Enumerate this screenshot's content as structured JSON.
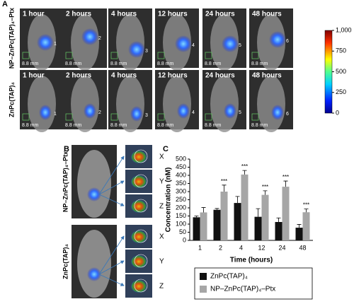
{
  "panel_a": {
    "label": "A",
    "rows": [
      {
        "label": "NP–ZnPc(TAP)₄–Ptx",
        "images": [
          {
            "time": "1 hour",
            "number": "1",
            "scale": "8.8 mm"
          },
          {
            "time": "2 hours",
            "number": "2",
            "scale": "8.8 mm"
          },
          {
            "time": "4 hours",
            "number": "3",
            "scale": "8.8 mm"
          },
          {
            "time": "12 hours",
            "number": "4",
            "scale": "8.8 mm"
          },
          {
            "time": "24 hours",
            "number": "5",
            "scale": "8.8 mm"
          },
          {
            "time": "48 hours",
            "number": "6",
            "scale": "8.8 mm"
          }
        ]
      },
      {
        "label": "ZnPc(TAP)₄",
        "images": [
          {
            "time": "1 hour",
            "number": "1",
            "scale": "8.8 mm"
          },
          {
            "time": "2 hours",
            "number": "2",
            "scale": "8.8 mm"
          },
          {
            "time": "4 hours",
            "number": "3",
            "scale": "8.8 mm"
          },
          {
            "time": "12 hours",
            "number": "4",
            "scale": "8.8 mm"
          },
          {
            "time": "24 hours",
            "number": "5",
            "scale": "8.8 mm"
          },
          {
            "time": "48 hours",
            "number": "6",
            "scale": "8.8 mm"
          }
        ]
      }
    ],
    "colorbar": {
      "lim": [
        0,
        1000
      ],
      "ticks": [
        {
          "value": 1000,
          "label": "1,000"
        },
        750,
        500,
        250,
        0
      ]
    }
  },
  "panel_b": {
    "label": "B",
    "groups": [
      {
        "label": "NP–ZnPc(TAP)₄–Ptx",
        "views": [
          "X",
          "Y",
          "Z"
        ]
      },
      {
        "label": "ZnPc(TAP)₄",
        "views": [
          "X",
          "Y",
          "Z"
        ]
      }
    ]
  },
  "panel_c_label": "C",
  "chart_data": {
    "type": "bar",
    "categories": [
      "1",
      "2",
      "4",
      "12",
      "24",
      "48"
    ],
    "x_label": "Time (hours)",
    "y_label": "Concentration (nM)",
    "ylim": [
      0,
      500
    ],
    "yticks": [
      0,
      50,
      100,
      150,
      200,
      250,
      300,
      350,
      400,
      450,
      500
    ],
    "series": [
      {
        "name": "ZnPc(TAP)₄",
        "color": "#111111",
        "values": [
          142,
          188,
          230,
          145,
          113,
          78
        ],
        "errors": [
          8,
          8,
          40,
          50,
          25,
          20
        ]
      },
      {
        "name": "NP–ZnPc(TAP)₄–Ptx",
        "color": "#a6a6a6",
        "values": [
          172,
          300,
          405,
          280,
          330,
          173
        ],
        "errors": [
          30,
          40,
          25,
          25,
          35,
          20
        ],
        "significance": [
          null,
          "***",
          "***",
          "***",
          "***",
          "***"
        ]
      }
    ]
  }
}
